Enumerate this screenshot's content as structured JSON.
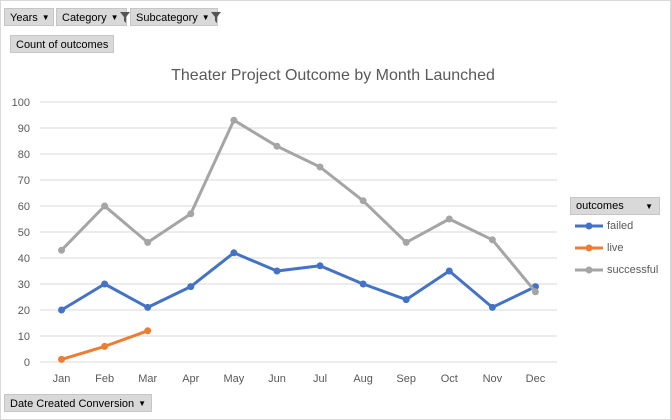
{
  "filters": {
    "years": "Years",
    "category": "Category",
    "subcategory": "Subcategory"
  },
  "value_field": "Count of outcomes",
  "axis_field": "Date Created Conversion",
  "legend": {
    "title": "outcomes",
    "items": [
      "failed",
      "live",
      "successful"
    ]
  },
  "icons": {
    "dropdown": "dropdown-arrow-icon",
    "filter": "funnel-filter-icon"
  },
  "chart_data": {
    "type": "line",
    "title": "Theater Project Outcome by Month Launched",
    "xlabel": "",
    "ylabel": "",
    "categories": [
      "Jan",
      "Feb",
      "Mar",
      "Apr",
      "May",
      "Jun",
      "Jul",
      "Aug",
      "Sep",
      "Oct",
      "Nov",
      "Dec"
    ],
    "ylim": [
      0,
      100
    ],
    "yticks": [
      0,
      10,
      20,
      30,
      40,
      50,
      60,
      70,
      80,
      90,
      100
    ],
    "grid": true,
    "legend_position": "right",
    "series": [
      {
        "name": "failed",
        "color": "#4472c4",
        "values": [
          20,
          30,
          21,
          29,
          42,
          35,
          37,
          30,
          24,
          35,
          21,
          29
        ]
      },
      {
        "name": "live",
        "color": "#ed7d31",
        "values": [
          1,
          6,
          12,
          null,
          null,
          null,
          null,
          null,
          null,
          null,
          null,
          null
        ]
      },
      {
        "name": "successful",
        "color": "#a5a5a5",
        "values": [
          43,
          60,
          46,
          57,
          93,
          83,
          75,
          62,
          46,
          55,
          47,
          27
        ]
      }
    ]
  }
}
